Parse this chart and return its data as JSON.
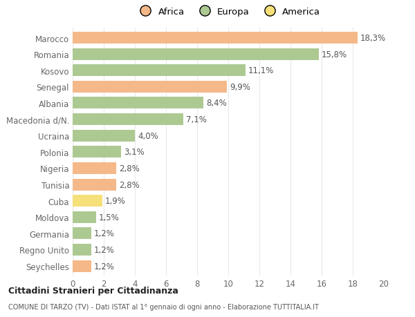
{
  "categories": [
    "Marocco",
    "Romania",
    "Kosovo",
    "Senegal",
    "Albania",
    "Macedonia d/N.",
    "Ucraina",
    "Polonia",
    "Nigeria",
    "Tunisia",
    "Cuba",
    "Moldova",
    "Germania",
    "Regno Unito",
    "Seychelles"
  ],
  "values": [
    18.3,
    15.8,
    11.1,
    9.9,
    8.4,
    7.1,
    4.0,
    3.1,
    2.8,
    2.8,
    1.9,
    1.5,
    1.2,
    1.2,
    1.2
  ],
  "labels": [
    "18,3%",
    "15,8%",
    "11,1%",
    "9,9%",
    "8,4%",
    "7,1%",
    "4,0%",
    "3,1%",
    "2,8%",
    "2,8%",
    "1,9%",
    "1,5%",
    "1,2%",
    "1,2%",
    "1,2%"
  ],
  "colors": [
    "#f5b888",
    "#adc992",
    "#adc992",
    "#f5b888",
    "#adc992",
    "#adc992",
    "#adc992",
    "#adc992",
    "#f5b888",
    "#f5b888",
    "#f5e07a",
    "#adc992",
    "#adc992",
    "#adc992",
    "#f5b888"
  ],
  "legend_labels": [
    "Africa",
    "Europa",
    "America"
  ],
  "legend_colors": [
    "#f5b888",
    "#adc992",
    "#f5e07a"
  ],
  "title1": "Cittadini Stranieri per Cittadinanza",
  "title2": "COMUNE DI TARZO (TV) - Dati ISTAT al 1° gennaio di ogni anno - Elaborazione TUTTITALIA.IT",
  "xlim": [
    0,
    20
  ],
  "xticks": [
    0,
    2,
    4,
    6,
    8,
    10,
    12,
    14,
    16,
    18,
    20
  ],
  "background_color": "#ffffff",
  "grid_color": "#e8e8e8",
  "bar_height": 0.72,
  "label_fontsize": 8.5,
  "tick_fontsize": 8.5,
  "label_color": "#555555",
  "tick_color": "#666666"
}
